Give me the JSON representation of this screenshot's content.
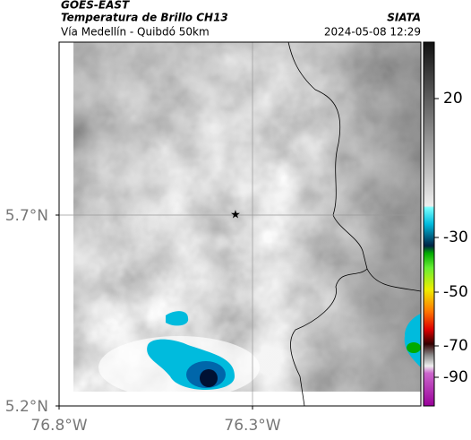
{
  "header": {
    "title": "GOES-EAST",
    "subtitle": "Temperatura de Brillo CH13",
    "location": "Vía Medellín - Quibdó 50km",
    "source": "SIATA",
    "timestamp": "2024-05-08 12:29"
  },
  "map": {
    "lat_ticks": [
      "5.7°N",
      "5.2°N"
    ],
    "lon_ticks": [
      "76.8°W",
      "76.3°W"
    ]
  },
  "colorbar": {
    "ticks": [
      20,
      -30,
      -50,
      -70,
      -90
    ]
  }
}
